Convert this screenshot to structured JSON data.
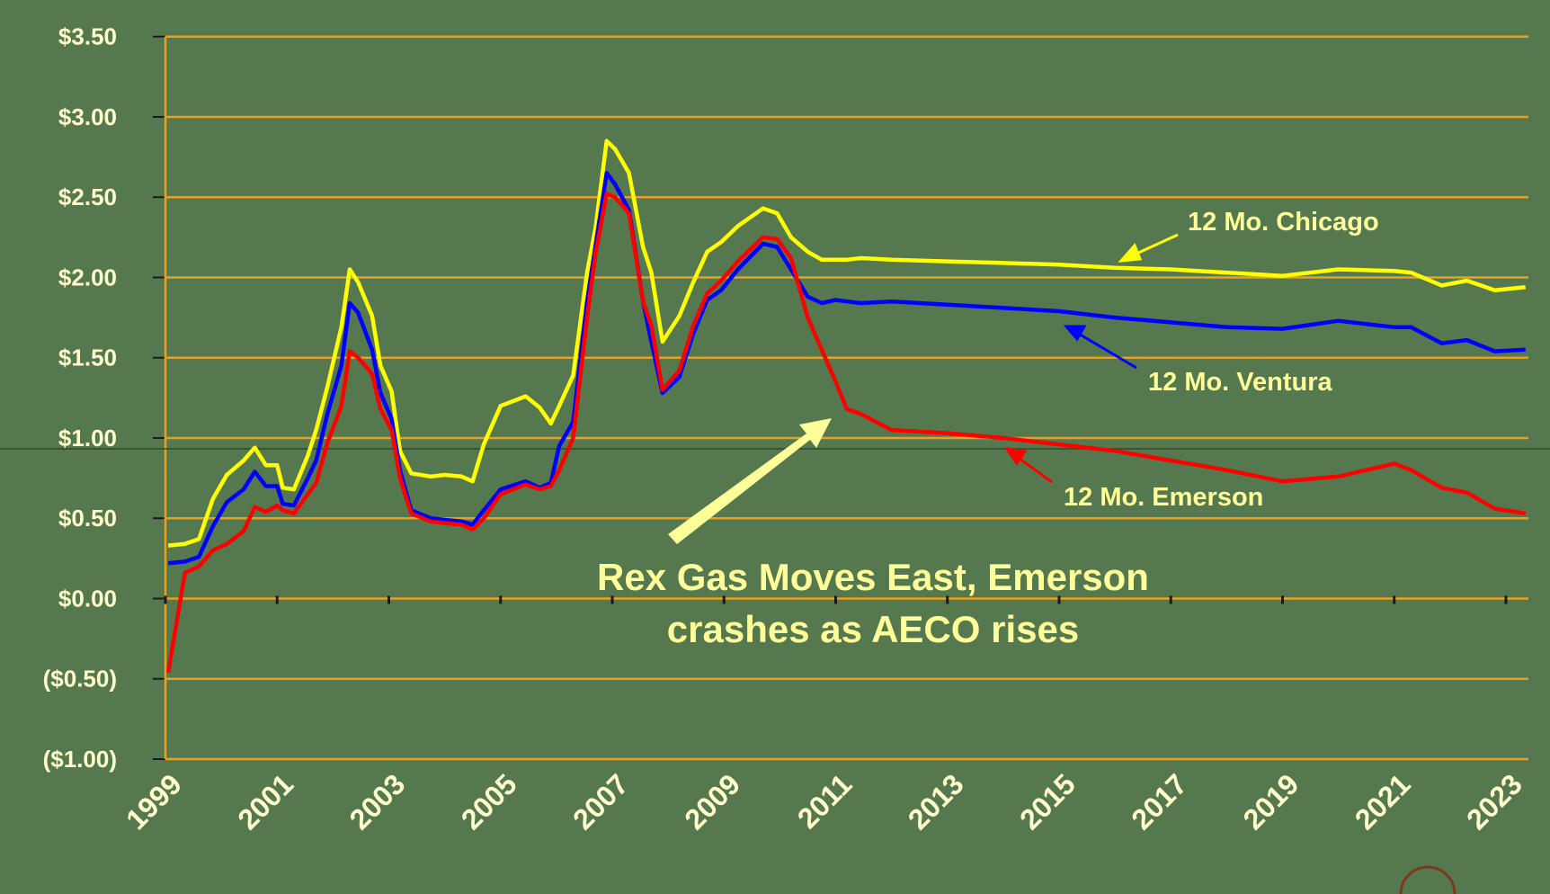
{
  "chart_data": {
    "type": "line",
    "x": [
      1999.05,
      1999.35,
      1999.6,
      1999.85,
      2000.1,
      2000.4,
      2000.6,
      2000.8,
      2001.0,
      2001.1,
      2001.3,
      2001.55,
      2001.7,
      2001.9,
      2002.15,
      2002.3,
      2002.45,
      2002.7,
      2002.85,
      2003.05,
      2003.2,
      2003.4,
      2003.75,
      2004.0,
      2004.3,
      2004.5,
      2004.7,
      2005.0,
      2005.45,
      2005.7,
      2005.9,
      2006.05,
      2006.3,
      2006.55,
      2006.7,
      2006.9,
      2007.05,
      2007.3,
      2007.55,
      2007.7,
      2007.9,
      2008.2,
      2008.45,
      2008.7,
      2008.95,
      2009.25,
      2009.7,
      2009.95,
      2010.2,
      2010.5,
      2010.75,
      2011.0,
      2011.2,
      2011.45,
      2012,
      2013,
      2014,
      2015,
      2016,
      2017,
      2018,
      2019,
      2020,
      2021,
      2021.3,
      2021.85,
      2022.3,
      2022.8,
      2023.35
    ],
    "series": [
      {
        "name": "12 Mo. Chicago",
        "color": "#ffff00",
        "values": [
          0.33,
          0.34,
          0.37,
          0.62,
          0.77,
          0.86,
          0.94,
          0.83,
          0.83,
          0.69,
          0.68,
          0.89,
          1.05,
          1.32,
          1.69,
          2.05,
          1.97,
          1.76,
          1.45,
          1.29,
          0.92,
          0.78,
          0.76,
          0.77,
          0.76,
          0.73,
          0.96,
          1.2,
          1.26,
          1.19,
          1.09,
          1.2,
          1.39,
          2.03,
          2.31,
          2.85,
          2.8,
          2.65,
          2.19,
          2.03,
          1.6,
          1.76,
          1.97,
          2.16,
          2.22,
          2.32,
          2.43,
          2.4,
          2.25,
          2.16,
          2.11,
          2.11,
          2.11,
          2.12,
          2.11,
          2.1,
          2.09,
          2.08,
          2.06,
          2.05,
          2.03,
          2.01,
          2.05,
          2.04,
          2.03,
          1.95,
          1.98,
          1.92,
          1.94
        ]
      },
      {
        "name": "12 Mo. Ventura",
        "color": "#0000ff",
        "values": [
          0.22,
          0.23,
          0.26,
          0.45,
          0.6,
          0.68,
          0.79,
          0.7,
          0.7,
          0.59,
          0.58,
          0.75,
          0.86,
          1.15,
          1.45,
          1.84,
          1.78,
          1.55,
          1.28,
          1.12,
          0.8,
          0.55,
          0.5,
          0.49,
          0.48,
          0.46,
          0.55,
          0.68,
          0.73,
          0.69,
          0.72,
          0.95,
          1.1,
          1.85,
          2.2,
          2.65,
          2.58,
          2.42,
          1.85,
          1.6,
          1.28,
          1.38,
          1.65,
          1.86,
          1.92,
          2.05,
          2.21,
          2.19,
          2.05,
          1.88,
          1.84,
          1.86,
          1.85,
          1.84,
          1.85,
          1.83,
          1.81,
          1.79,
          1.75,
          1.72,
          1.69,
          1.68,
          1.73,
          1.69,
          1.69,
          1.59,
          1.61,
          1.54,
          1.55
        ]
      },
      {
        "name": "12 Mo. Emerson",
        "color": "#ff0000",
        "values": [
          -0.46,
          0.16,
          0.2,
          0.3,
          0.34,
          0.42,
          0.57,
          0.54,
          0.58,
          0.55,
          0.53,
          0.65,
          0.72,
          0.97,
          1.2,
          1.54,
          1.5,
          1.4,
          1.18,
          1.05,
          0.75,
          0.53,
          0.48,
          0.47,
          0.46,
          0.43,
          0.5,
          0.65,
          0.71,
          0.68,
          0.7,
          0.8,
          1.0,
          1.75,
          2.15,
          2.52,
          2.5,
          2.4,
          1.85,
          1.7,
          1.3,
          1.42,
          1.7,
          1.9,
          1.98,
          2.1,
          2.25,
          2.24,
          2.12,
          1.75,
          1.55,
          1.35,
          1.18,
          1.15,
          1.05,
          1.03,
          1.0,
          0.96,
          0.92,
          0.86,
          0.8,
          0.73,
          0.76,
          0.84,
          0.8,
          0.69,
          0.66,
          0.56,
          0.53
        ]
      }
    ],
    "annotation": [
      "Rex Gas Moves East, Emerson",
      "crashes as AECO rises"
    ],
    "xlim": [
      1999,
      2023.4
    ],
    "xticks": [
      1999,
      2001,
      2003,
      2005,
      2007,
      2009,
      2011,
      2013,
      2015,
      2017,
      2019,
      2021,
      2023
    ],
    "ylim": [
      -1,
      3.5
    ],
    "yticks": [
      {
        "value": -1,
        "label": "($1.00)"
      },
      {
        "value": -0.5,
        "label": "($0.50)"
      },
      {
        "value": 0,
        "label": "$0.00"
      },
      {
        "value": 0.5,
        "label": "$0.50"
      },
      {
        "value": 1,
        "label": "$1.00"
      },
      {
        "value": 1.5,
        "label": "$1.50"
      },
      {
        "value": 2,
        "label": "$2.00"
      },
      {
        "value": 2.5,
        "label": "$2.50"
      },
      {
        "value": 3,
        "label": "$3.00"
      },
      {
        "value": 3.5,
        "label": "$3.50"
      }
    ],
    "grid": true,
    "grid_color": "#e8a020"
  }
}
